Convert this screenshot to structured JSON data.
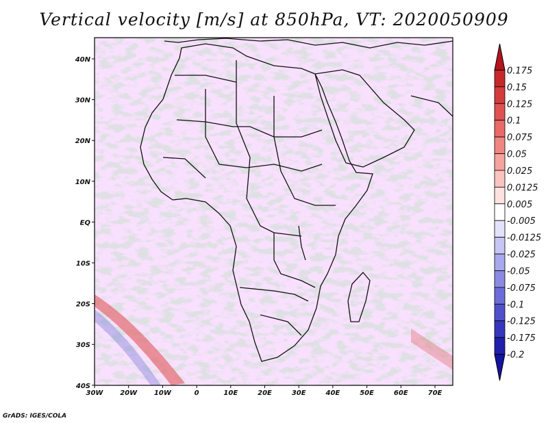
{
  "title": "Vertical velocity [m/s] at 850hPa, VT: 2020050909",
  "credit": "GrADS: IGES/COLA",
  "map": {
    "variable": "Vertical velocity",
    "units": "m/s",
    "level": "850hPa",
    "valid_time": "2020050909",
    "lon_ticks": [
      "30W",
      "20W",
      "10W",
      "0",
      "10E",
      "20E",
      "30E",
      "40E",
      "50E",
      "60E",
      "70E"
    ],
    "lat_ticks": [
      "40N",
      "30N",
      "20N",
      "10N",
      "EQ",
      "10S",
      "20S",
      "30S",
      "40S"
    ]
  },
  "colorbar": {
    "labels": [
      "0.175",
      "0.15",
      "0.125",
      "0.1",
      "0.075",
      "0.05",
      "0.025",
      "0.0125",
      "0.005",
      "-0.005",
      "-0.0125",
      "-0.025",
      "-0.05",
      "-0.075",
      "-0.1",
      "-0.125",
      "-0.175",
      "-0.2"
    ],
    "colors": [
      "#b3141e",
      "#c6282c",
      "#d43c3c",
      "#e05252",
      "#e96a68",
      "#f08682",
      "#f5a39f",
      "#f9c3c0",
      "#fde2e0",
      "#ffffff",
      "#e2e2fb",
      "#c6c6f4",
      "#a8a8ec",
      "#8a8ae3",
      "#6c6cd8",
      "#5050cb",
      "#3636bc",
      "#2020ab",
      "#1313a0"
    ]
  }
}
